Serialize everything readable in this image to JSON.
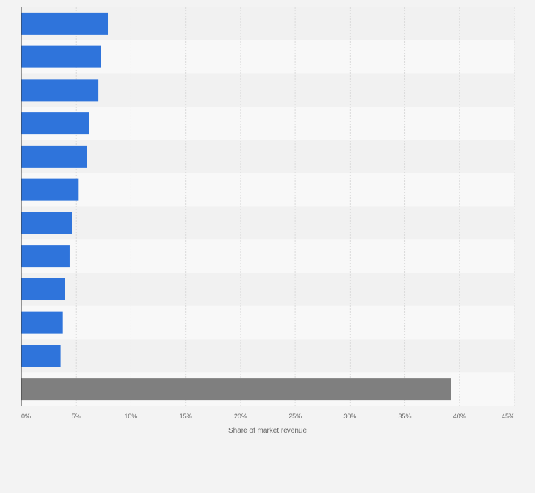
{
  "chart_data": {
    "type": "bar",
    "orientation": "horizontal",
    "categories": [
      "",
      "",
      "",
      "",
      "",
      "",
      "",
      "",
      "",
      "",
      "",
      ""
    ],
    "values": [
      7.9,
      7.3,
      7.0,
      6.2,
      6.0,
      5.2,
      4.6,
      4.4,
      4.0,
      3.8,
      3.6,
      39.2
    ],
    "value_unit": "%",
    "colors": {
      "bar": "#2f74db",
      "highlight_bar": "#7f7f7f",
      "band_dark": "#f1f1f1",
      "band_light": "#f8f8f8",
      "gridline": "#dadada",
      "axis_text": "#666666"
    },
    "highlight_index": 11,
    "xlim": [
      0,
      45
    ],
    "xticks": [
      0,
      5,
      10,
      15,
      20,
      25,
      30,
      35,
      40,
      45
    ],
    "xtick_labels": [
      "0%",
      "5%",
      "10%",
      "15%",
      "20%",
      "25%",
      "30%",
      "35%",
      "40%",
      "45%"
    ],
    "xlabel": "Share of market revenue",
    "grid": true,
    "legend": "none"
  }
}
